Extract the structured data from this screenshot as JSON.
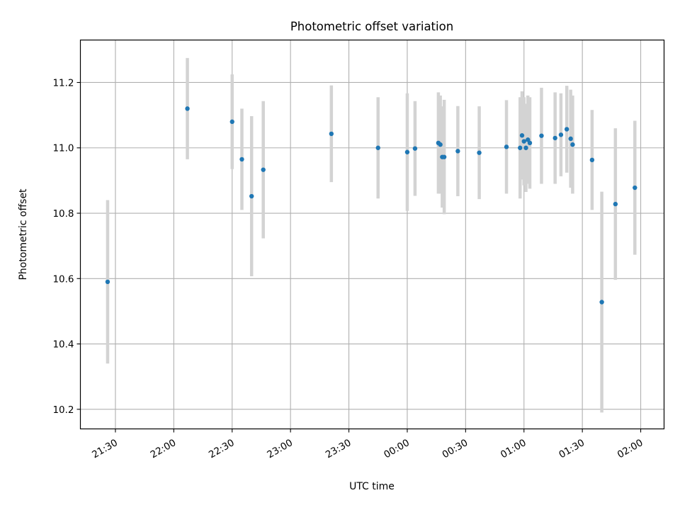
{
  "chart_data": {
    "type": "scatter",
    "title": "Photometric offset variation",
    "xlabel": "UTC time",
    "ylabel": "Photometric offset",
    "grid": true,
    "legend": "none",
    "x_unit": "UTC time (HH:MM), times after midnight written as 24:MM etc.",
    "x_ticks": [
      "21:30",
      "22:00",
      "22:30",
      "23:00",
      "23:30",
      "00:00",
      "00:30",
      "01:00",
      "01:30",
      "02:00"
    ],
    "y_ticks": [
      "10.2",
      "10.4",
      "10.6",
      "10.8",
      "11.0",
      "11.2"
    ],
    "xlim": [
      "21:12",
      "02:12"
    ],
    "ylim": [
      10.14,
      11.33
    ],
    "colors": {
      "point": "#1f77b4",
      "errorbar": "#d3d3d3",
      "grid": "#b0b0b0"
    },
    "points": [
      {
        "x": "21:26",
        "y": 10.59,
        "err": 0.25
      },
      {
        "x": "22:07",
        "y": 11.12,
        "err": 0.155
      },
      {
        "x": "22:30",
        "y": 11.08,
        "err": 0.145
      },
      {
        "x": "22:35",
        "y": 10.965,
        "err": 0.155
      },
      {
        "x": "22:40",
        "y": 10.852,
        "err": 0.245
      },
      {
        "x": "22:46",
        "y": 10.933,
        "err": 0.21
      },
      {
        "x": "23:21",
        "y": 11.043,
        "err": 0.148
      },
      {
        "x": "23:45",
        "y": 11.0,
        "err": 0.155
      },
      {
        "x": "24:00",
        "y": 10.987,
        "err": 0.18
      },
      {
        "x": "24:04",
        "y": 10.998,
        "err": 0.145
      },
      {
        "x": "24:16",
        "y": 11.015,
        "err": 0.155
      },
      {
        "x": "24:17",
        "y": 11.01,
        "err": 0.15
      },
      {
        "x": "24:18",
        "y": 10.972,
        "err": 0.155
      },
      {
        "x": "24:19",
        "y": 10.972,
        "err": 0.175
      },
      {
        "x": "24:26",
        "y": 10.99,
        "err": 0.138
      },
      {
        "x": "24:37",
        "y": 10.985,
        "err": 0.142
      },
      {
        "x": "24:51",
        "y": 11.003,
        "err": 0.143
      },
      {
        "x": "24:58",
        "y": 11.0,
        "err": 0.155
      },
      {
        "x": "24:59",
        "y": 11.038,
        "err": 0.135
      },
      {
        "x": "25:00",
        "y": 11.02,
        "err": 0.135
      },
      {
        "x": "25:01",
        "y": 11.0,
        "err": 0.135
      },
      {
        "x": "25:02",
        "y": 11.025,
        "err": 0.135
      },
      {
        "x": "25:03",
        "y": 11.015,
        "err": 0.14
      },
      {
        "x": "25:09",
        "y": 11.037,
        "err": 0.147
      },
      {
        "x": "25:16",
        "y": 11.03,
        "err": 0.14
      },
      {
        "x": "25:19",
        "y": 11.04,
        "err": 0.127
      },
      {
        "x": "25:22",
        "y": 11.057,
        "err": 0.133
      },
      {
        "x": "25:24",
        "y": 11.028,
        "err": 0.15
      },
      {
        "x": "25:25",
        "y": 11.01,
        "err": 0.15
      },
      {
        "x": "25:35",
        "y": 10.963,
        "err": 0.153
      },
      {
        "x": "25:40",
        "y": 10.528,
        "err": 0.338
      },
      {
        "x": "25:47",
        "y": 10.828,
        "err": 0.232
      },
      {
        "x": "25:57",
        "y": 10.878,
        "err": 0.205
      }
    ]
  }
}
